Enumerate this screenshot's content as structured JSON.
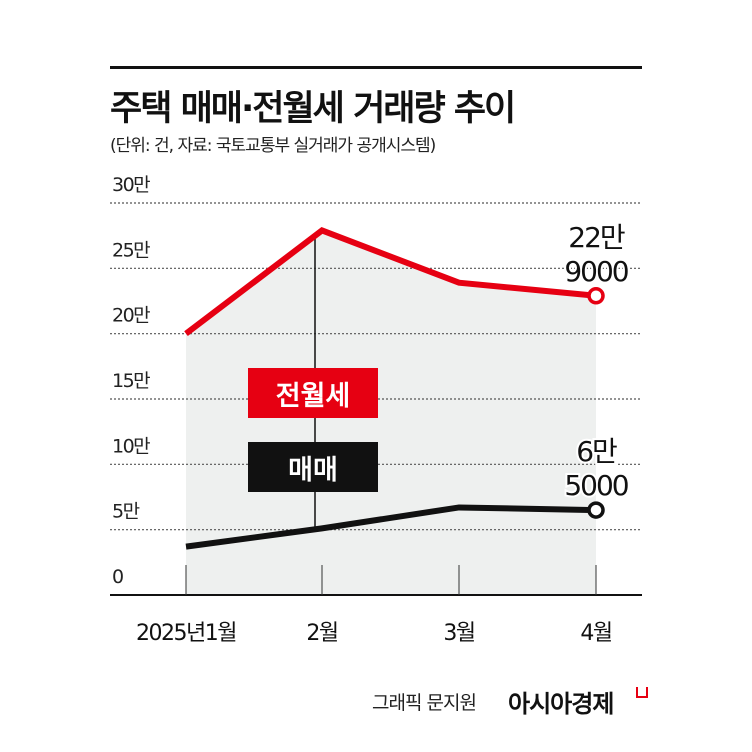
{
  "title": "주택 매매·전월세 거래량 추이",
  "subtitle": "(단위: 건, 자료: 국토교통부 실거래가 공개시스템)",
  "credit": "그래픽 문지원",
  "brand": "아시아경제",
  "colors": {
    "rent": "#e60012",
    "sale": "#111111",
    "fill": "#eef0ef",
    "grid": "#555555"
  },
  "chart_data": {
    "type": "line",
    "categories": [
      "2025년1월",
      "2월",
      "3월",
      "4월"
    ],
    "ylim": [
      0,
      300000
    ],
    "yticks": [
      0,
      50000,
      100000,
      150000,
      200000,
      250000,
      300000
    ],
    "ytick_labels": [
      "0",
      "5만",
      "10만",
      "15만",
      "20만",
      "25만",
      "30만"
    ],
    "grid": true,
    "series": [
      {
        "name": "전월세",
        "values": [
          200000,
          279000,
          239000,
          229000
        ],
        "end_label": [
          "22만",
          "9000"
        ]
      },
      {
        "name": "매매",
        "values": [
          37000,
          51000,
          67000,
          65000
        ],
        "end_label": [
          "6만",
          "5000"
        ]
      }
    ]
  }
}
